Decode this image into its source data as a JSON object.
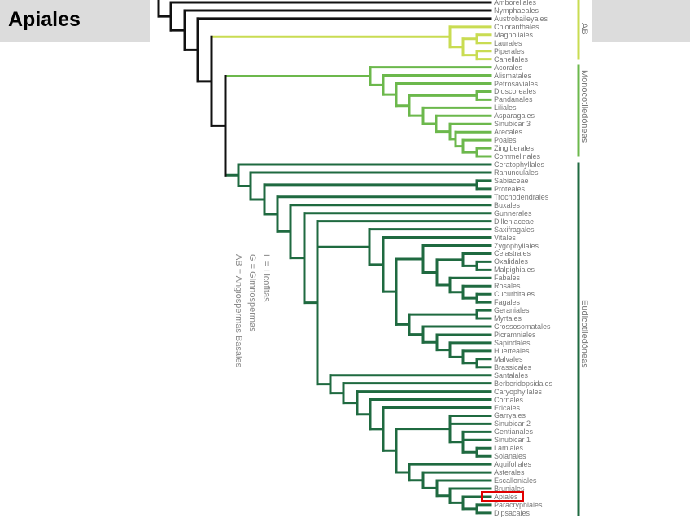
{
  "header": {
    "title": "Apiales"
  },
  "highlighted_leaf": "Apiales",
  "colors": {
    "backbone": "#111111",
    "basal_angiosperms": "#c9dc52",
    "monocots": "#6cb84c",
    "eudicots": "#1f6a40",
    "highlight": "#e00000"
  },
  "clades": [
    {
      "label": "AB",
      "group": "basal_angiosperms"
    },
    {
      "label": "Monocotiledóneas",
      "group": "monocots"
    },
    {
      "label": "Eudicotiledóneas",
      "group": "eudicots"
    }
  ],
  "legend": [
    "L = Licofitas",
    "G = Gimnospermas",
    "AB = Angiospermas Basales"
  ],
  "leaves": [
    "Amborellales",
    "Nymphaeales",
    "Austrobaileyales",
    "Chloranthales",
    "Magnoliales",
    "Laurales",
    "Piperales",
    "Canellales",
    "Acorales",
    "Alismatales",
    "Petrosaviales",
    "Dioscoreales",
    "Pandanales",
    "Liliales",
    "Asparagales",
    "Sinubicar 3",
    "Arecales",
    "Poales",
    "Zingiberales",
    "Commelinales",
    "Ceratophyllales",
    "Ranunculales",
    "Sabiaceae",
    "Proteales",
    "Trochodendrales",
    "Buxales",
    "Gunnerales",
    "Dilleniaceae",
    "Saxifragales",
    "Vitales",
    "Zygophyllales",
    "Celastrales",
    "Oxalidales",
    "Malpighiales",
    "Fabales",
    "Rosales",
    "Cucurbitales",
    "Fagales",
    "Geraniales",
    "Myrtales",
    "Crossosomatales",
    "Picramniales",
    "Sapindales",
    "Huerteales",
    "Malvales",
    "Brassicales",
    "Santalales",
    "Berberidopsidales",
    "Caryophyllales",
    "Cornales",
    "Ericales",
    "Garryales",
    "Sinubicar 2",
    "Gentianales",
    "Sinubicar 1",
    "Lamiales",
    "Solanales",
    "Aquifoliales",
    "Asterales",
    "Escalloniales",
    "Bruniales",
    "Apiales",
    "Paracryphiales",
    "Dipsacales"
  ]
}
